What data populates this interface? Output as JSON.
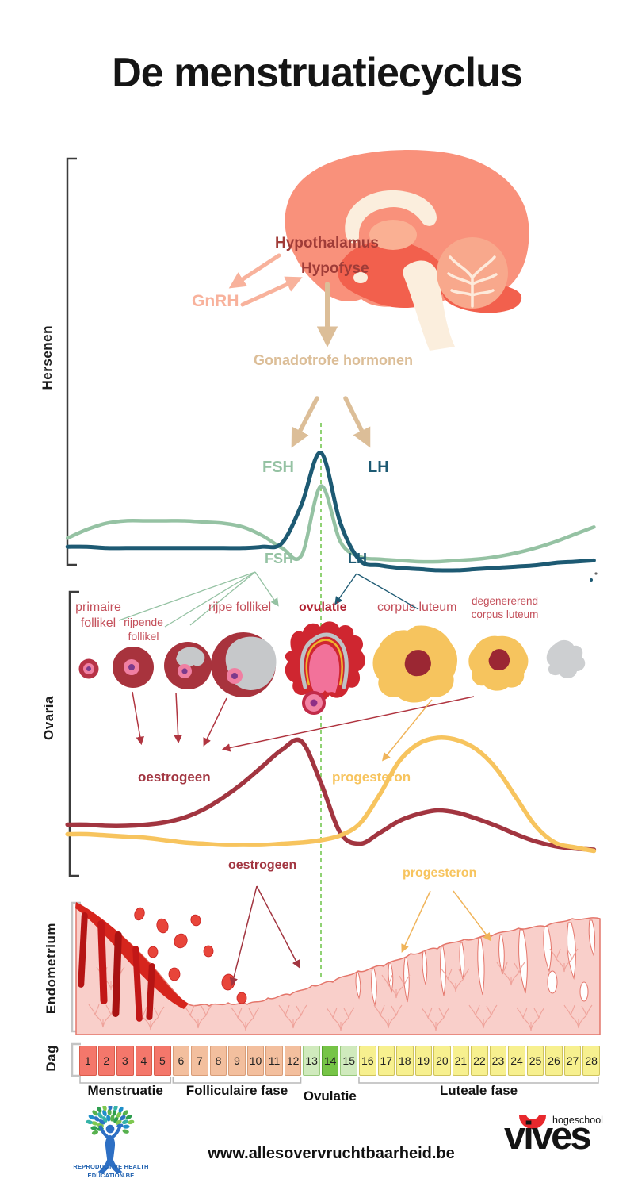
{
  "title": "De menstruatiecyclus",
  "colors": {
    "fsh": "#95c2a3",
    "lh": "#1d5a73",
    "oestrogeen": "#a23540",
    "progesteron": "#f7c45e",
    "ovulation_line": "#74c751",
    "stage_label_red": "#c4505b",
    "salmon": "#f8b29c",
    "tan": "#dcbe98"
  },
  "brain": {
    "section_label": "Hersenen",
    "hypothalamus_label": "Hypothalamus",
    "hypofyse_label": "Hypofyse",
    "gnrh_label": "GnRH",
    "gonadotrofe_label": "Gonadotrofe hormonen"
  },
  "gonadotropin_chart": {
    "fsh_label": "FSH",
    "lh_label": "LH",
    "fsh_label_below": "FSH",
    "lh_label_below": "LH"
  },
  "ovaria": {
    "section_label": "Ovaria",
    "stage_labels": {
      "primaire": "primaire follikel",
      "rijpende": "rijpende follikel",
      "rijpe": "rijpe follikel",
      "ovulatie": "ovulatie",
      "corpus_luteum": "corpus luteum",
      "degenererend": "degenererend corpus luteum"
    },
    "oestrogeen_label": "oestrogeen",
    "progesteron_label": "progesteron"
  },
  "endometrium": {
    "section_label": "Endometrium",
    "oestrogeen_label": "oestrogeen",
    "progesteron_label": "progesteron"
  },
  "dag": {
    "section_label": "Dag",
    "days": [
      1,
      2,
      3,
      4,
      5,
      6,
      7,
      8,
      9,
      10,
      11,
      12,
      13,
      14,
      15,
      16,
      17,
      18,
      19,
      20,
      21,
      22,
      23,
      24,
      25,
      26,
      27,
      28
    ],
    "phases": [
      {
        "label": "Menstruatie",
        "from": 1,
        "to": 5,
        "fill": "#f4776b",
        "border": "#d95c4b",
        "bracket": true
      },
      {
        "label": "Folliculaire fase",
        "from": 6,
        "to": 12,
        "fill": "#f3bf9e",
        "border": "#d89d78",
        "bracket": true
      },
      {
        "label": "Ovulatie",
        "from": 13,
        "to": 15,
        "fill": "#d0eabd",
        "border": "#99c97d",
        "bracket": false
      },
      {
        "label": "Luteale fase",
        "from": 16,
        "to": 28,
        "fill": "#f7f08f",
        "border": "#cfc35c",
        "bracket": true
      }
    ],
    "ovulation_day": {
      "day": 14,
      "fill": "#76c447",
      "border": "#55a02d"
    }
  },
  "footer": {
    "website": "www.allesovervruchtbaarheid.be",
    "rhe_logo_line1": "REPRODUCTIVE HEALTH",
    "rhe_logo_line2": "EDUCATION.BE",
    "vives_name": "vives",
    "vives_sub": "hogeschool"
  },
  "chart_data": [
    {
      "id": "gonadotrofe_hormonen",
      "type": "line",
      "x_days": [
        1,
        2,
        3,
        4,
        5,
        6,
        7,
        8,
        9,
        10,
        11,
        12,
        13,
        14,
        15,
        16,
        17,
        18,
        19,
        20,
        21,
        22,
        23,
        24,
        25,
        26,
        27,
        28
      ],
      "series": [
        {
          "name": "FSH",
          "color": "#95c2a3",
          "values": [
            28,
            35,
            40,
            42,
            42,
            42,
            42,
            41,
            40,
            37,
            30,
            20,
            14,
            70,
            25,
            13,
            11,
            10,
            9,
            9,
            10,
            11,
            13,
            16,
            20,
            25,
            31,
            37
          ]
        },
        {
          "name": "LH",
          "color": "#1d5a73",
          "values": [
            21,
            21,
            20,
            20,
            20,
            20,
            20,
            20,
            20,
            20,
            21,
            24,
            55,
            97,
            40,
            10,
            6,
            4,
            3,
            2,
            2,
            3,
            4,
            5,
            6,
            8,
            9,
            10
          ]
        }
      ],
      "y_unit": "relative level 0-100",
      "ovulation_line_day": 14,
      "legend_position": "labels beside curves",
      "grid": false
    },
    {
      "id": "ovariele_hormonen",
      "type": "line",
      "x_days": [
        1,
        2,
        3,
        4,
        5,
        6,
        7,
        8,
        9,
        10,
        11,
        12,
        13,
        14,
        15,
        16,
        17,
        18,
        19,
        20,
        21,
        22,
        23,
        24,
        25,
        26,
        27,
        28
      ],
      "series": [
        {
          "name": "oestrogeen",
          "color": "#a23540",
          "values": [
            27,
            27,
            26,
            26,
            27,
            29,
            33,
            40,
            50,
            62,
            76,
            90,
            97,
            62,
            20,
            11,
            20,
            30,
            36,
            39,
            37,
            32,
            26,
            19,
            13,
            9,
            7,
            6
          ]
        },
        {
          "name": "progesteron",
          "color": "#f7c45e",
          "values": [
            19,
            19,
            18,
            17,
            16,
            14,
            12,
            11,
            10,
            10,
            10,
            11,
            12,
            14,
            18,
            28,
            52,
            80,
            95,
            100,
            98,
            90,
            74,
            50,
            26,
            12,
            8,
            5
          ]
        }
      ],
      "y_unit": "relative level 0-100",
      "ovulation_line_day": 14,
      "legend_position": "labels beside curves",
      "grid": false
    }
  ]
}
